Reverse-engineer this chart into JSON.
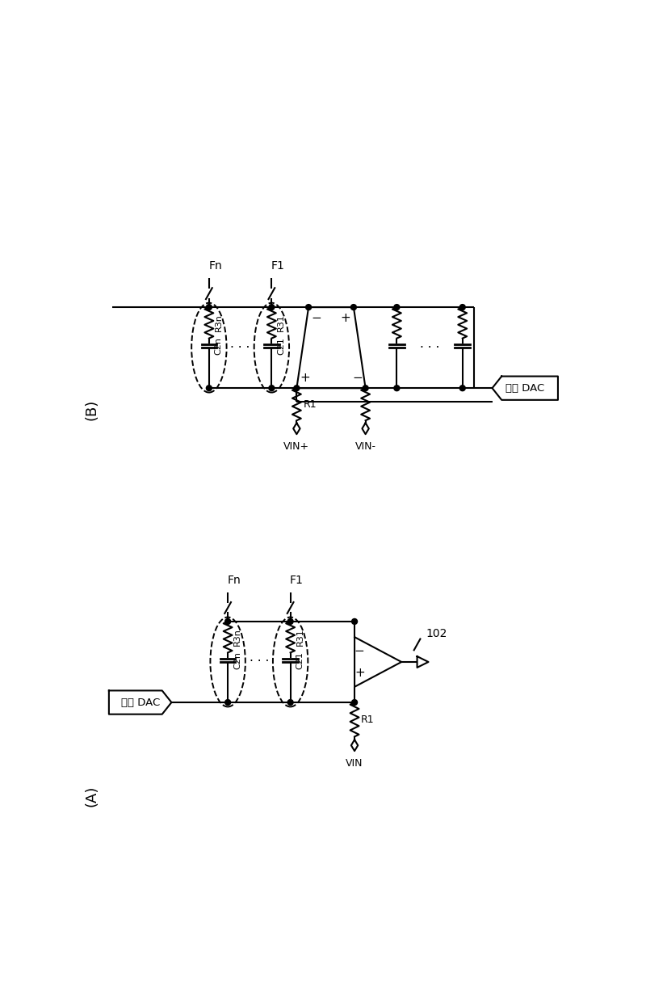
{
  "bg_color": "#ffffff",
  "line_color": "#000000",
  "fig_width": 8.0,
  "fig_height": 12.36,
  "label_A": "(A)",
  "label_B": "(B)",
  "label_102": "102",
  "label_Fn_A": "Fn",
  "label_F1_A": "F1",
  "label_R3n_A": "R3n",
  "label_C2n_A": "C2n",
  "label_R31_A": "R31",
  "label_C21_A": "C21",
  "label_R1_A": "R1",
  "label_VIN_A": "VIN",
  "label_DAC_A": "电流 DAC",
  "label_Fn_B": "Fn",
  "label_F1_B": "F1",
  "label_R3n_B": "R3n",
  "label_C2n_B": "C2n",
  "label_R31_B": "R31",
  "label_C21_B": "C21",
  "label_R1_B": "R1",
  "label_VIN_plus": "VIN+",
  "label_VIN_minus": "VIN-",
  "label_DAC_B": "电流 DAC"
}
